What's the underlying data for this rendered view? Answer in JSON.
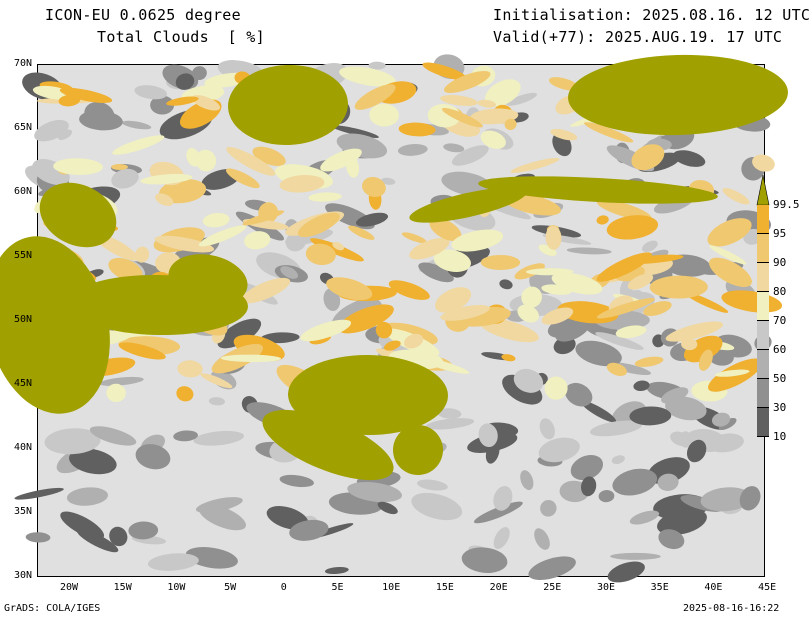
{
  "header": {
    "model": "ICON-EU 0.0625 degree",
    "variable": "Total Clouds  [ %]",
    "init": "Initialisation: 2025.08.16. 12 UTC",
    "valid": "Valid(+77): 2025.AUG.19. 17 UTC"
  },
  "footer": {
    "credit": "GrADS: COLA/IGES",
    "timestamp": "2025-08-16-16:22"
  },
  "map": {
    "lat_labels": [
      "70N",
      "65N",
      "60N",
      "55N",
      "50N",
      "45N",
      "40N",
      "35N",
      "30N"
    ],
    "lon_labels": [
      "20W",
      "15W",
      "10W",
      "5W",
      "0",
      "5E",
      "10E",
      "15E",
      "20E",
      "25E",
      "30E",
      "35E",
      "40E",
      "45E"
    ],
    "background_color": "#e0e0e0"
  },
  "colorbar": {
    "labels": [
      "99.5",
      "95",
      "90",
      "80",
      "70",
      "60",
      "50",
      "30",
      "10"
    ],
    "colors": [
      "#a0a000",
      "#f0b030",
      "#f0c870",
      "#f0d8a0",
      "#f0f0c0",
      "#c8c8c8",
      "#b0b0b0",
      "#909090",
      "#606060"
    ]
  }
}
